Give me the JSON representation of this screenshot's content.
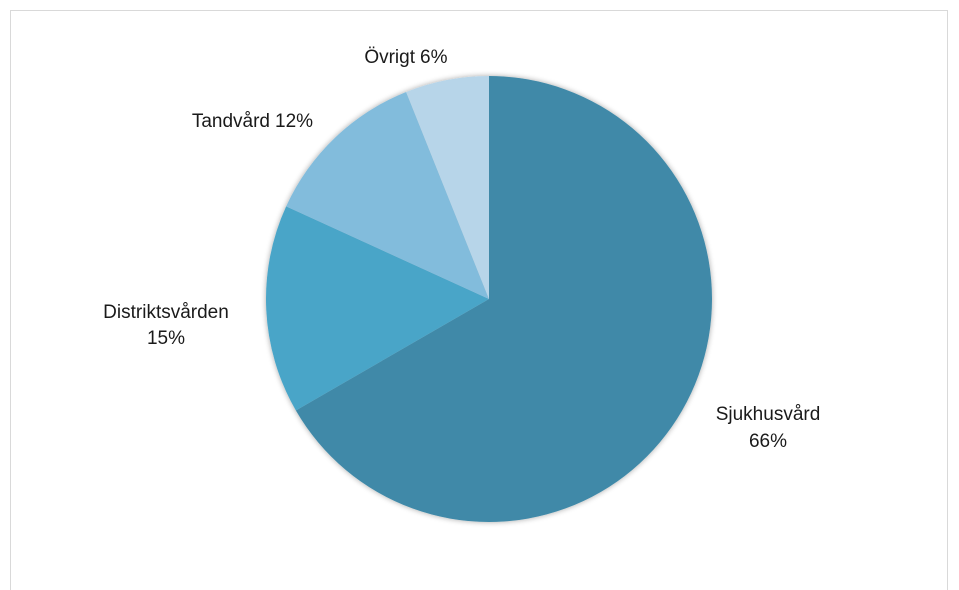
{
  "chart_data": {
    "type": "pie",
    "title": "",
    "start_angle_deg": 0,
    "direction": "clockwise",
    "legend": "none",
    "slices": [
      {
        "name": "Sjukhusvård",
        "value": 66,
        "value_label": "66%",
        "color": "#3f89a8"
      },
      {
        "name": "Distriktsvården",
        "value": 15,
        "value_label": "15%",
        "color": "#4aa5c8"
      },
      {
        "name": "Tandvård",
        "value": 12,
        "value_label": "12%",
        "color": "#82bcdc"
      },
      {
        "name": "Övrigt",
        "value": 6,
        "value_label": "6%",
        "color": "#b7d5e9"
      }
    ]
  }
}
